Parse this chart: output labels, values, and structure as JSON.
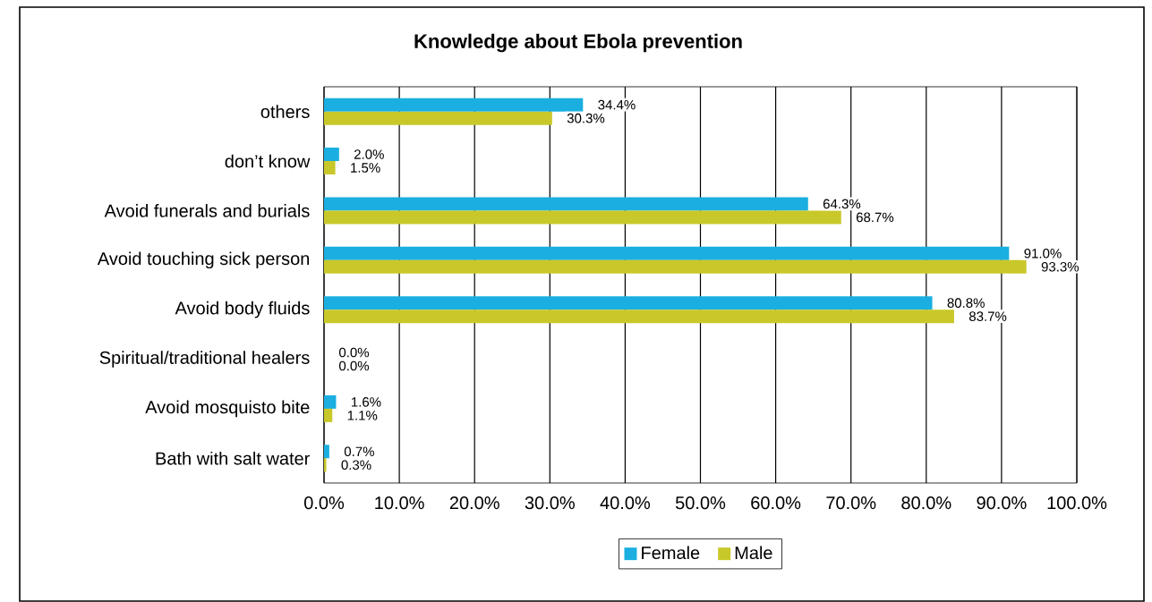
{
  "chart_data": {
    "type": "bar",
    "orientation": "horizontal",
    "title": "Knowledge about Ebola prevention",
    "categories": [
      "others",
      "don’t know",
      "Avoid funerals and burials",
      "Avoid touching sick person",
      "Avoid body fluids",
      "Spiritual/traditional healers",
      "Avoid mosquisto bite",
      "Bath with salt water"
    ],
    "series": [
      {
        "name": "Female",
        "color": "#1aafe0",
        "values": [
          34.4,
          2.0,
          64.3,
          91.0,
          80.8,
          0.0,
          1.6,
          0.7
        ],
        "value_labels": [
          "34.4%",
          "2.0%",
          "64.3%",
          "91.0%",
          "80.8%",
          "0.0%",
          "1.6%",
          "0.7%"
        ]
      },
      {
        "name": "Male",
        "color": "#c8c82a",
        "values": [
          30.3,
          1.5,
          68.7,
          93.3,
          83.7,
          0.0,
          1.1,
          0.3
        ],
        "value_labels": [
          "30.3%",
          "1.5%",
          "68.7%",
          "93.3%",
          "83.7%",
          "0.0%",
          "1.1%",
          "0.3%"
        ]
      }
    ],
    "xlim": [
      0,
      100
    ],
    "xticks": [
      {
        "value": 0,
        "label": "0.0%"
      },
      {
        "value": 10,
        "label": "10.0%"
      },
      {
        "value": 20,
        "label": "20.0%"
      },
      {
        "value": 30,
        "label": "30.0%"
      },
      {
        "value": 40,
        "label": "40.0%"
      },
      {
        "value": 50,
        "label": "50.0%"
      },
      {
        "value": 60,
        "label": "60.0%"
      },
      {
        "value": 70,
        "label": "70.0%"
      },
      {
        "value": 80,
        "label": "80.0%"
      },
      {
        "value": 90,
        "label": "90.0%"
      },
      {
        "value": 100,
        "label": "100.0%"
      }
    ],
    "grid": "x",
    "legend": "bottom"
  }
}
